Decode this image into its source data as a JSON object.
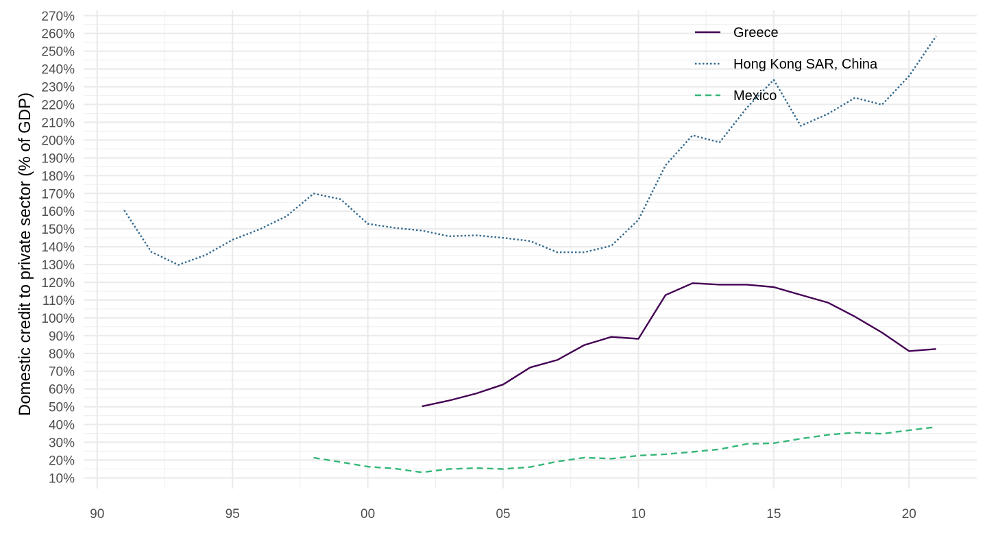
{
  "chart_data": {
    "type": "line",
    "title": "",
    "xlabel": "",
    "ylabel": "Domestic credit to private sector (% of GDP)",
    "xlim": [
      1989.5,
      2022.5
    ],
    "ylim": [
      4,
      273
    ],
    "x_tick_values": [
      1990,
      1995,
      2000,
      2005,
      2010,
      2015,
      2020
    ],
    "x_tick_labels": [
      "90",
      "95",
      "00",
      "05",
      "10",
      "15",
      "20"
    ],
    "y_tick_values": [
      10,
      20,
      30,
      40,
      50,
      60,
      70,
      80,
      90,
      100,
      110,
      120,
      130,
      140,
      150,
      160,
      170,
      180,
      190,
      200,
      210,
      220,
      230,
      240,
      250,
      260,
      270
    ],
    "y_tick_labels": [
      "10%",
      "20%",
      "30%",
      "40%",
      "50%",
      "60%",
      "70%",
      "80%",
      "90%",
      "100%",
      "110%",
      "120%",
      "130%",
      "140%",
      "150%",
      "160%",
      "170%",
      "180%",
      "190%",
      "200%",
      "210%",
      "220%",
      "230%",
      "240%",
      "250%",
      "260%",
      "270%"
    ],
    "grid": true,
    "legend_position": "top-right",
    "series": [
      {
        "name": "Greece",
        "color": "#440154",
        "dash": "solid",
        "x": [
          2002,
          2003,
          2004,
          2005,
          2006,
          2007,
          2008,
          2009,
          2010,
          2011,
          2012,
          2013,
          2014,
          2015,
          2016,
          2017,
          2018,
          2019,
          2020,
          2021
        ],
        "values": [
          50.2,
          53.5,
          57.4,
          62.5,
          72.1,
          76.3,
          84.7,
          89.3,
          88.2,
          112.8,
          119.5,
          118.7,
          118.7,
          117.3,
          112.9,
          108.6,
          100.7,
          91.7,
          81.3,
          82.5
        ]
      },
      {
        "name": "Hong Kong SAR, China",
        "color": "#31688e",
        "dash": "dotted",
        "x": [
          1991,
          1992,
          1993,
          1994,
          1995,
          1996,
          1997,
          1998,
          1999,
          2000,
          2001,
          2002,
          2003,
          2004,
          2005,
          2006,
          2007,
          2008,
          2009,
          2010,
          2011,
          2012,
          2013,
          2014,
          2015,
          2016,
          2017,
          2018,
          2019,
          2020,
          2021
        ],
        "values": [
          160.5,
          137.1,
          129.8,
          135.3,
          143.9,
          149.8,
          157.2,
          169.9,
          166.7,
          152.9,
          150.6,
          149.1,
          145.9,
          146.4,
          145.0,
          143.2,
          136.9,
          136.9,
          140.6,
          155.1,
          185.8,
          202.7,
          198.7,
          218.1,
          233.9,
          208.0,
          214.7,
          223.8,
          219.9,
          236.0,
          258.5
        ]
      },
      {
        "name": "Mexico",
        "color": "#35b779",
        "dash": "dashed",
        "x": [
          1998,
          1999,
          2000,
          2001,
          2002,
          2003,
          2004,
          2005,
          2006,
          2007,
          2008,
          2009,
          2010,
          2011,
          2012,
          2013,
          2014,
          2015,
          2016,
          2017,
          2018,
          2019,
          2020,
          2021
        ],
        "values": [
          21.3,
          18.9,
          16.3,
          15.2,
          13.1,
          15.0,
          15.5,
          15.0,
          16.1,
          19.2,
          21.4,
          20.8,
          22.5,
          23.3,
          24.6,
          26.1,
          29.1,
          29.5,
          32.0,
          34.2,
          35.5,
          34.8,
          36.8,
          38.6
        ]
      }
    ]
  }
}
